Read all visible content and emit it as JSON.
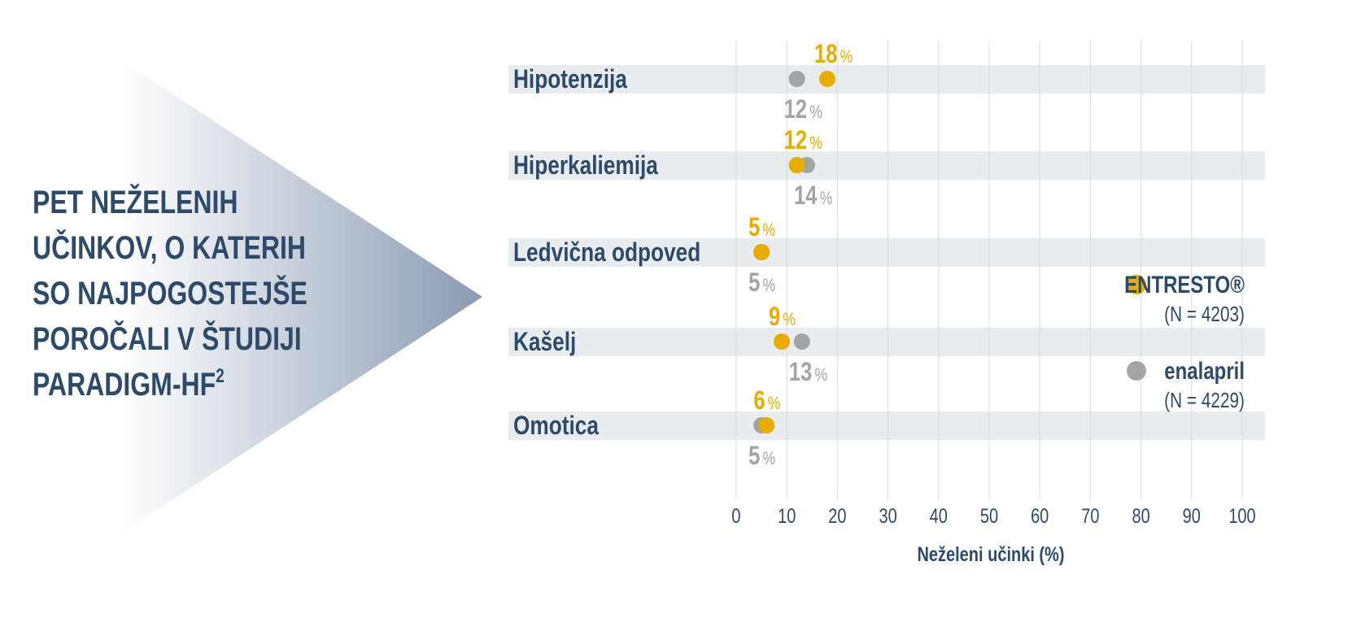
{
  "heading": {
    "lines": [
      "PET NEŽELENIH",
      "UČINKOV, O KATERIH",
      "SO NAJPOGOSTEJŠE",
      "POROČALI V ŠTUDIJI",
      "PARADIGM-HF"
    ],
    "superscript": "2"
  },
  "chart_data": {
    "type": "dot",
    "xlabel": "Neželeni učinki (%)",
    "xlim": [
      0,
      100
    ],
    "xticks": [
      "0",
      "10",
      "20",
      "30",
      "40",
      "50",
      "60",
      "70",
      "80",
      "90",
      "100"
    ],
    "grid": "vertical",
    "unit": "%",
    "categories": [
      "Hipotenzija",
      "Hiperkaliemija",
      "Ledvična odpoved",
      "Kašelj",
      "Omotica"
    ],
    "series": [
      {
        "name": "ENTRESTO®",
        "n_label": "(N = 4203)",
        "color": "#E8AC00",
        "values": [
          18,
          12,
          5,
          9,
          6
        ]
      },
      {
        "name": "enalapril",
        "n_label": "(N = 4229)",
        "color": "#A3A4A4",
        "values": [
          12,
          14,
          5,
          13,
          5
        ]
      }
    ],
    "legend": "right",
    "colors": {
      "text": "#2E4A6B",
      "band": "#E8ECEF",
      "grid": "#D9DCDF",
      "arrow": "#8A9AB3"
    }
  }
}
